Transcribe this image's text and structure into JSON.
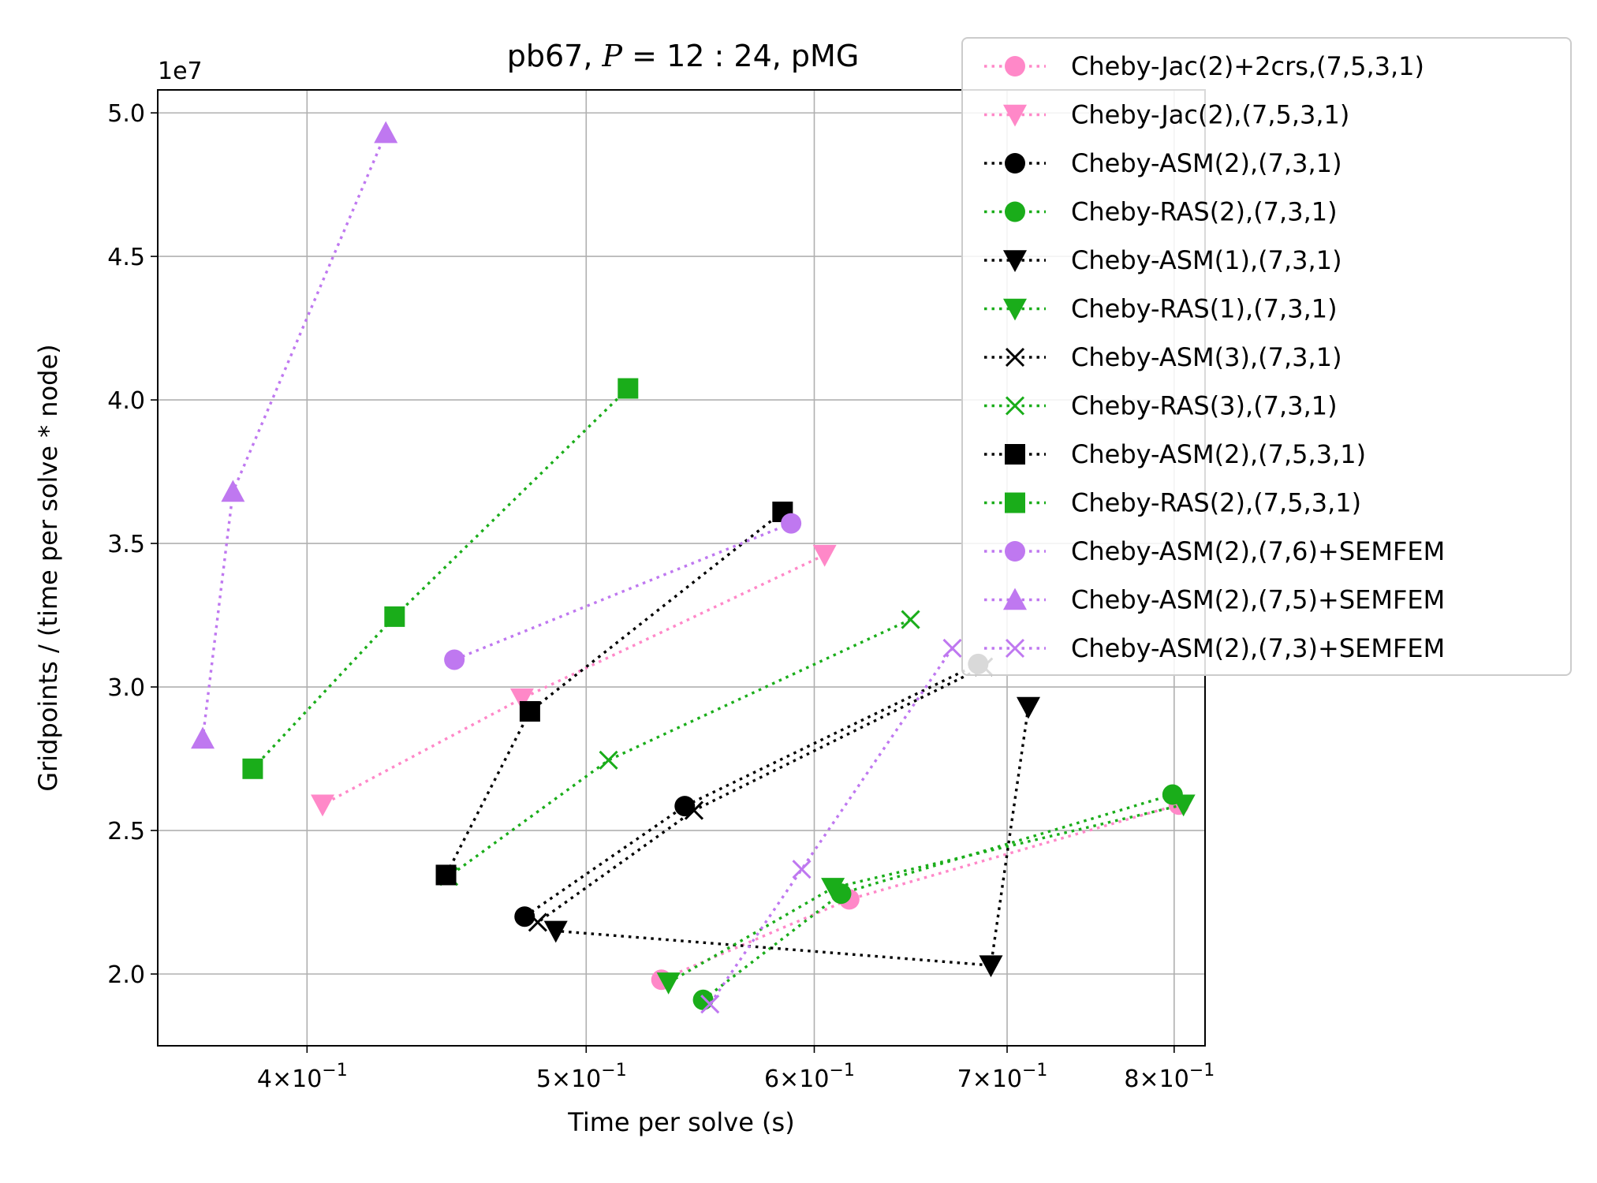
{
  "chart_data": {
    "type": "line",
    "title": "pb67, P = 12 : 24, pMG",
    "title_parts": {
      "prefix": "pb67, ",
      "variable": "P",
      "equals": " = 12 : 24",
      "suffix": ", pMG"
    },
    "xlabel": "Time per solve (s)",
    "ylabel": "Gridpoints / (time per solve * node)",
    "x_scale": "log",
    "xlim": [
      0.355,
      0.82
    ],
    "ylim": [
      17500000,
      50800000
    ],
    "y_offset_label": "1e7",
    "grid": true,
    "legend_position": "upper right, outside plot area",
    "x_ticks": [
      {
        "value": 0.4,
        "mantissa": "4",
        "base": "10",
        "exp": "−1"
      },
      {
        "value": 0.5,
        "mantissa": "5",
        "base": "10",
        "exp": "−1"
      },
      {
        "value": 0.6,
        "mantissa": "6",
        "base": "10",
        "exp": "−1"
      },
      {
        "value": 0.7,
        "mantissa": "7",
        "base": "10",
        "exp": "−1"
      },
      {
        "value": 0.8,
        "mantissa": "8",
        "base": "10",
        "exp": "−1"
      }
    ],
    "y_ticks": [
      {
        "value": 20000000,
        "label": "2.0"
      },
      {
        "value": 25000000,
        "label": "2.5"
      },
      {
        "value": 30000000,
        "label": "3.0"
      },
      {
        "value": 35000000,
        "label": "3.5"
      },
      {
        "value": 40000000,
        "label": "4.0"
      },
      {
        "value": 45000000,
        "label": "4.5"
      },
      {
        "value": 50000000,
        "label": "5.0"
      }
    ],
    "series": [
      {
        "name": "Cheby-Jac(2)+2crs,(7,5,3,1)",
        "color": "#ff88c8",
        "marker": "circle",
        "x": [
          0.803,
          0.617,
          0.531
        ],
        "y": [
          25900000,
          22600000,
          19800000
        ]
      },
      {
        "name": "Cheby-Jac(2),(7,5,3,1)",
        "color": "#ff88c8",
        "marker": "triangle-down",
        "x": [
          0.605,
          0.475,
          0.405
        ],
        "y": [
          34600000,
          29600000,
          25900000
        ]
      },
      {
        "name": "Cheby-ASM(2),(7,3,1)",
        "color": "#000000",
        "marker": "circle",
        "x": [
          0.684,
          0.541,
          0.476
        ],
        "y": [
          30800000,
          25850000,
          22000000
        ]
      },
      {
        "name": "Cheby-RAS(2),(7,3,1)",
        "color": "#1aad1a",
        "marker": "circle",
        "x": [
          0.799,
          0.613,
          0.549
        ],
        "y": [
          26250000,
          22800000,
          19100000
        ]
      },
      {
        "name": "Cheby-ASM(1),(7,3,1)",
        "color": "#000000",
        "marker": "triangle-down",
        "x": [
          0.712,
          0.691,
          0.488
        ],
        "y": [
          29300000,
          20300000,
          21500000
        ]
      },
      {
        "name": "Cheby-RAS(1),(7,3,1)",
        "color": "#1aad1a",
        "marker": "triangle-down",
        "x": [
          0.806,
          0.609,
          0.534
        ],
        "y": [
          25900000,
          23000000,
          19700000
        ]
      },
      {
        "name": "Cheby-ASM(3),(7,3,1)",
        "color": "#000000",
        "marker": "x",
        "x": [
          0.687,
          0.545,
          0.481
        ],
        "y": [
          30700000,
          25700000,
          21800000
        ]
      },
      {
        "name": "Cheby-RAS(3),(7,3,1)",
        "color": "#1aad1a",
        "marker": "x",
        "x": [
          0.648,
          0.509,
          0.448
        ],
        "y": [
          32350000,
          27450000,
          23400000
        ]
      },
      {
        "name": "Cheby-ASM(2),(7,5,3,1)",
        "color": "#000000",
        "marker": "square",
        "x": [
          0.585,
          0.478,
          0.447
        ],
        "y": [
          36100000,
          29150000,
          23450000
        ]
      },
      {
        "name": "Cheby-RAS(2),(7,5,3,1)",
        "color": "#1aad1a",
        "marker": "square",
        "x": [
          0.517,
          0.429,
          0.383
        ],
        "y": [
          40400000,
          32450000,
          27150000
        ]
      },
      {
        "name": "Cheby-ASM(2),(7,6)+SEMFEM",
        "color": "#bf78f0",
        "marker": "circle",
        "x": [
          0.589,
          0.45
        ],
        "y": [
          35700000,
          30950000
        ]
      },
      {
        "name": "Cheby-ASM(2),(7,5)+SEMFEM",
        "color": "#bf78f0",
        "marker": "triangle-up",
        "x": [
          0.426,
          0.377,
          0.368
        ],
        "y": [
          49300000,
          36800000,
          28200000
        ]
      },
      {
        "name": "Cheby-ASM(2),(7,3)+SEMFEM",
        "color": "#bf78f0",
        "marker": "x",
        "x": [
          0.67,
          0.594,
          0.552
        ],
        "y": [
          31350000,
          23650000,
          18950000
        ]
      }
    ]
  }
}
